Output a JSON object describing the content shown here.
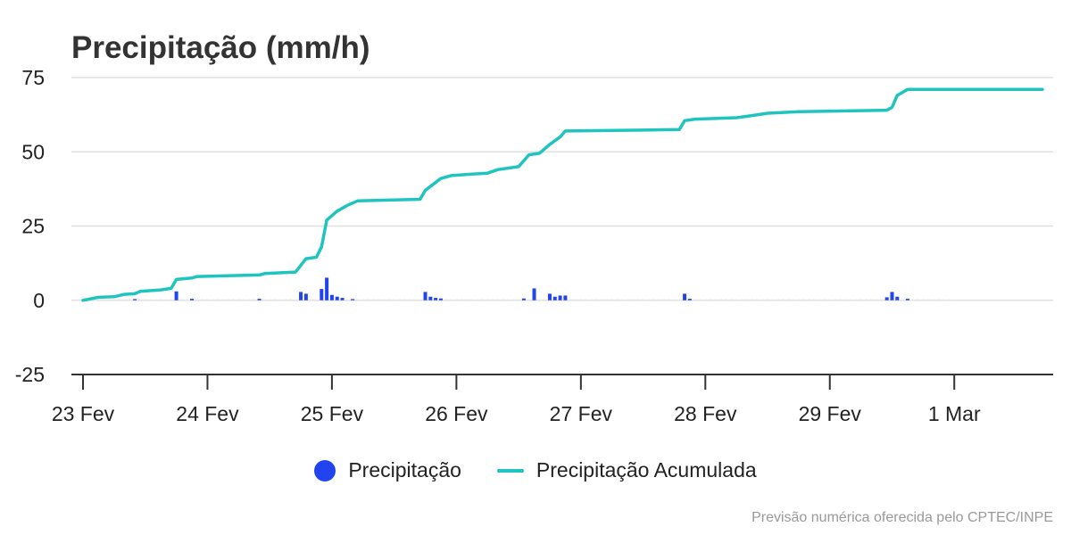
{
  "title": "Precipitação (mm/h)",
  "credits": "Previsão numérica oferecida pelo CPTEC/INPE",
  "colors": {
    "bar": "#2244ee",
    "line": "#1fc4bf",
    "grid": "#e0e0e0",
    "axis": "#333333",
    "ghost": "#e6e6e6"
  },
  "chart_data": {
    "type": "bar",
    "title": "Precipitação (mm/h)",
    "x_ticks": [
      "23 Fev",
      "24 Fev",
      "25 Fev",
      "26 Fev",
      "27 Fev",
      "28 Fev",
      "29 Fev",
      "1 Mar"
    ],
    "y_ticks": [
      75,
      50,
      25,
      0,
      -25
    ],
    "xlim": [
      "2024-02-23T00:00",
      "2024-03-01T17:00"
    ],
    "ylim": [
      -25,
      75
    ],
    "grid": true,
    "legend_position": "bottom-center",
    "series": [
      {
        "name": "Precipitação",
        "type": "bar",
        "color": "#2244ee",
        "points": [
          [
            "2024-02-23T10:00",
            0.4
          ],
          [
            "2024-02-23T18:00",
            3.0
          ],
          [
            "2024-02-23T21:00",
            0.5
          ],
          [
            "2024-02-24T10:00",
            0.5
          ],
          [
            "2024-02-24T18:00",
            2.8
          ],
          [
            "2024-02-24T19:00",
            2.2
          ],
          [
            "2024-02-24T22:00",
            3.8
          ],
          [
            "2024-02-24T23:00",
            7.6
          ],
          [
            "2024-02-25T00:00",
            1.8
          ],
          [
            "2024-02-25T01:00",
            1.2
          ],
          [
            "2024-02-25T02:00",
            0.8
          ],
          [
            "2024-02-25T04:00",
            0.4
          ],
          [
            "2024-02-25T18:00",
            2.8
          ],
          [
            "2024-02-25T19:00",
            1.2
          ],
          [
            "2024-02-25T20:00",
            0.8
          ],
          [
            "2024-02-25T21:00",
            0.6
          ],
          [
            "2024-02-26T13:00",
            0.6
          ],
          [
            "2024-02-26T15:00",
            4.0
          ],
          [
            "2024-02-26T18:00",
            2.2
          ],
          [
            "2024-02-26T19:00",
            1.2
          ],
          [
            "2024-02-26T20:00",
            1.6
          ],
          [
            "2024-02-26T21:00",
            1.6
          ],
          [
            "2024-02-27T20:00",
            2.2
          ],
          [
            "2024-02-27T21:00",
            0.5
          ],
          [
            "2024-02-29T11:00",
            1.0
          ],
          [
            "2024-02-29T12:00",
            2.8
          ],
          [
            "2024-02-29T13:00",
            1.2
          ],
          [
            "2024-02-29T15:00",
            0.5
          ]
        ]
      },
      {
        "name": "Precipitação Acumulada",
        "type": "line",
        "color": "#1fc4bf",
        "points": [
          [
            "2024-02-23T00:00",
            0.0
          ],
          [
            "2024-02-23T03:00",
            1.0
          ],
          [
            "2024-02-23T06:00",
            1.2
          ],
          [
            "2024-02-23T08:00",
            2.0
          ],
          [
            "2024-02-23T10:00",
            2.2
          ],
          [
            "2024-02-23T11:00",
            3.0
          ],
          [
            "2024-02-23T15:00",
            3.5
          ],
          [
            "2024-02-23T17:00",
            4.0
          ],
          [
            "2024-02-23T18:00",
            7.0
          ],
          [
            "2024-02-23T21:00",
            7.5
          ],
          [
            "2024-02-23T22:00",
            8.0
          ],
          [
            "2024-02-24T10:00",
            8.5
          ],
          [
            "2024-02-24T11:00",
            9.0
          ],
          [
            "2024-02-24T17:00",
            9.5
          ],
          [
            "2024-02-24T19:00",
            14.0
          ],
          [
            "2024-02-24T21:00",
            14.5
          ],
          [
            "2024-02-24T22:00",
            18.0
          ],
          [
            "2024-02-24T23:00",
            27.0
          ],
          [
            "2024-02-25T01:00",
            30.0
          ],
          [
            "2024-02-25T03:00",
            32.0
          ],
          [
            "2024-02-25T05:00",
            33.5
          ],
          [
            "2024-02-25T17:00",
            34.0
          ],
          [
            "2024-02-25T18:00",
            37.0
          ],
          [
            "2024-02-25T21:00",
            41.0
          ],
          [
            "2024-02-25T23:00",
            42.0
          ],
          [
            "2024-02-26T03:00",
            42.5
          ],
          [
            "2024-02-26T06:00",
            42.8
          ],
          [
            "2024-02-26T08:00",
            44.0
          ],
          [
            "2024-02-26T12:00",
            45.0
          ],
          [
            "2024-02-26T14:00",
            49.0
          ],
          [
            "2024-02-26T16:00",
            49.5
          ],
          [
            "2024-02-26T18:00",
            52.5
          ],
          [
            "2024-02-26T20:00",
            55.0
          ],
          [
            "2024-02-26T21:00",
            57.0
          ],
          [
            "2024-02-27T12:00",
            57.3
          ],
          [
            "2024-02-27T19:00",
            57.5
          ],
          [
            "2024-02-27T20:00",
            60.5
          ],
          [
            "2024-02-27T22:00",
            61.0
          ],
          [
            "2024-02-28T06:00",
            61.5
          ],
          [
            "2024-02-28T09:00",
            62.2
          ],
          [
            "2024-02-28T12:00",
            63.0
          ],
          [
            "2024-02-28T18:00",
            63.5
          ],
          [
            "2024-02-29T11:00",
            64.0
          ],
          [
            "2024-02-29T12:00",
            65.0
          ],
          [
            "2024-02-29T13:00",
            69.0
          ],
          [
            "2024-02-29T15:00",
            71.0
          ],
          [
            "2024-03-01T17:00",
            71.0
          ]
        ]
      }
    ]
  },
  "legend": {
    "items": [
      {
        "label": "Precipitação",
        "symbol": "dot",
        "color": "#2244ee"
      },
      {
        "label": "Precipitação Acumulada",
        "symbol": "line",
        "color": "#1fc4bf"
      }
    ]
  }
}
